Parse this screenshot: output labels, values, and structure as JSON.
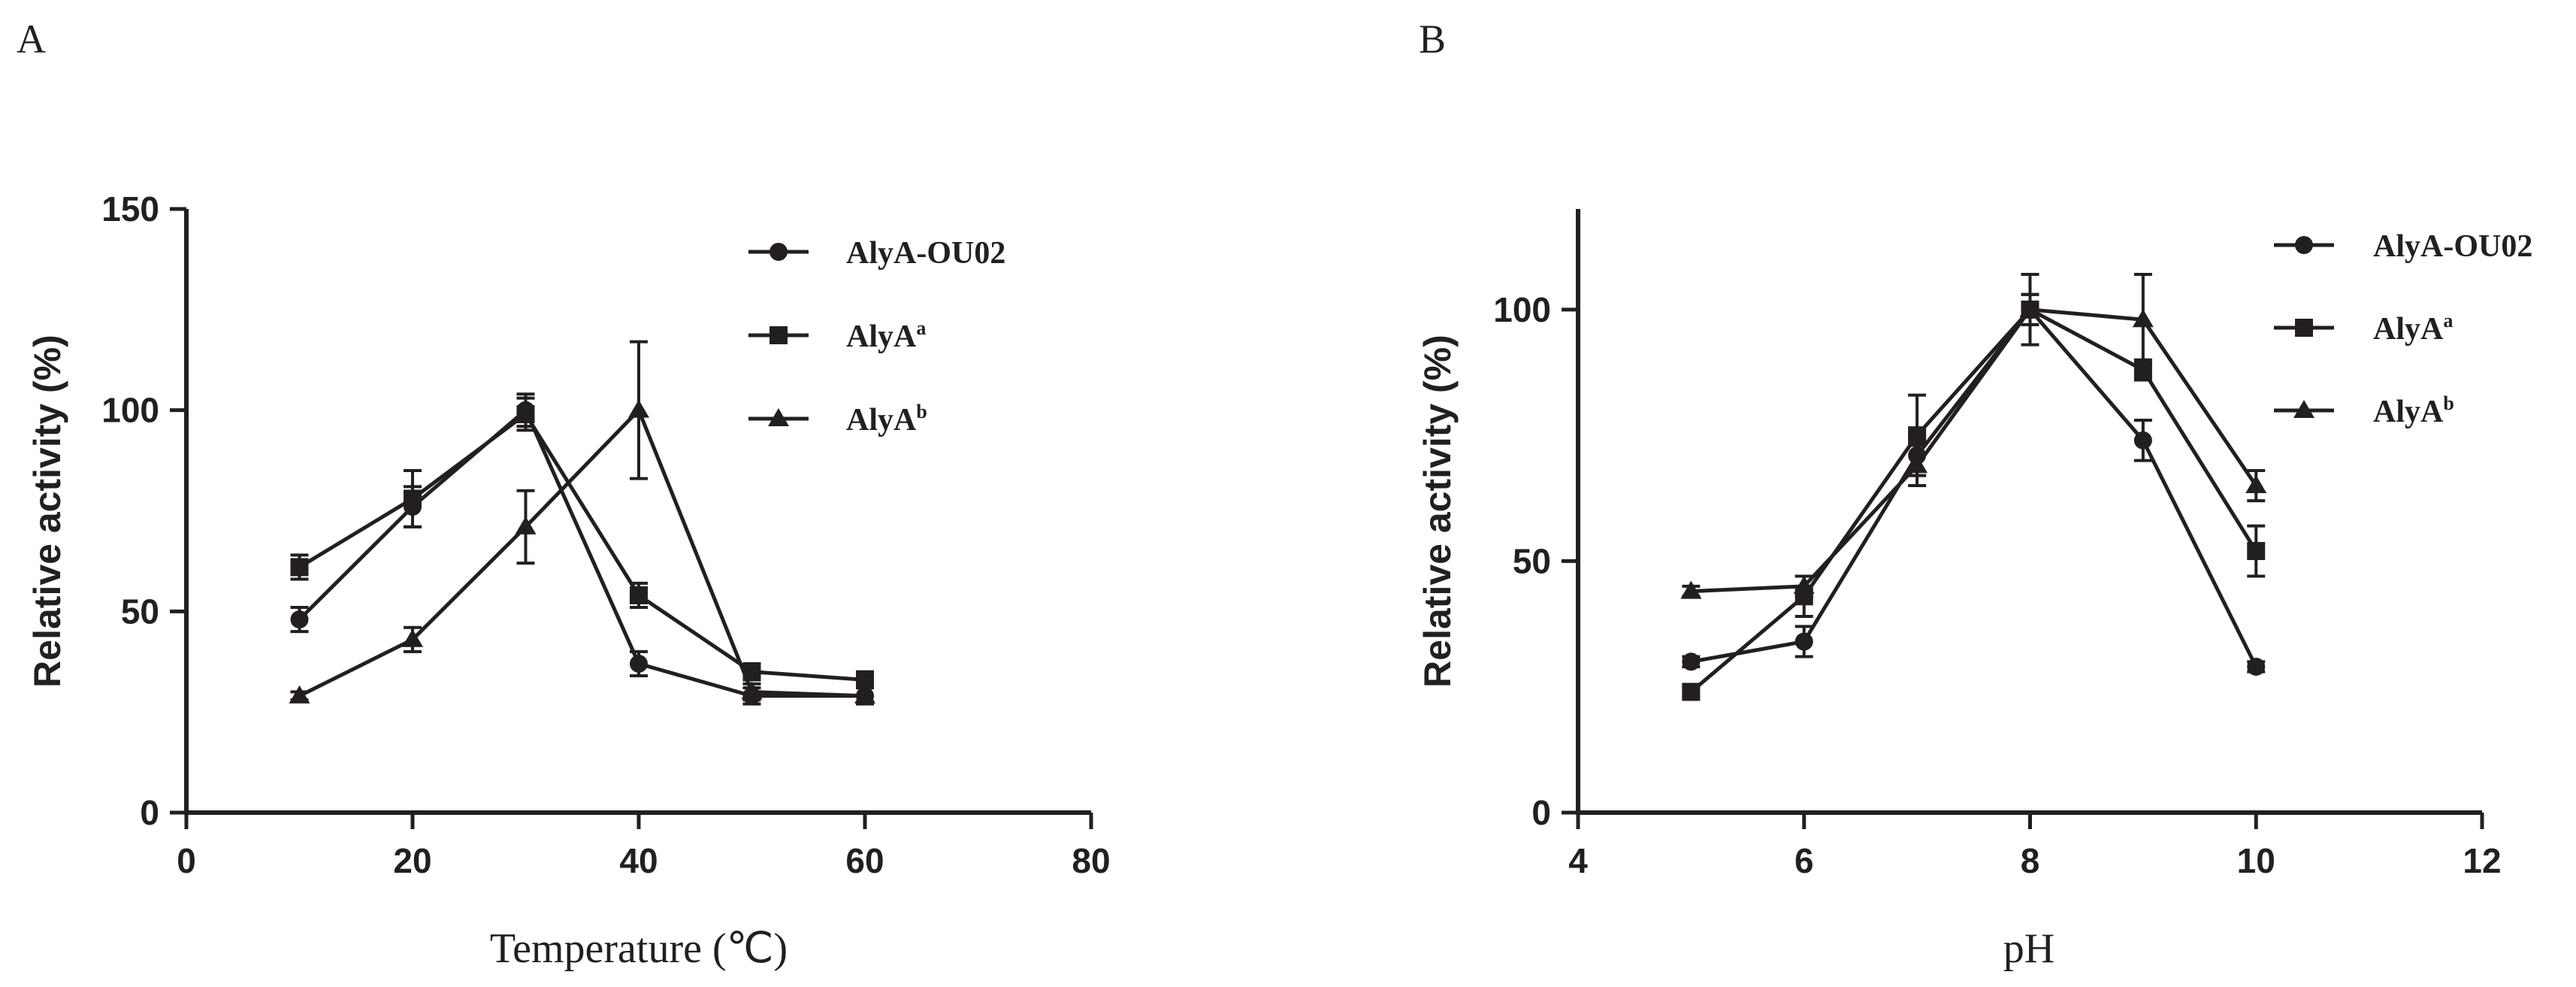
{
  "chart_data": [
    {
      "type": "line",
      "panel_label": "A",
      "xlabel": "Temperature (℃)",
      "ylabel": "Relative activity (%)",
      "xlim": [
        0,
        80
      ],
      "ylim": [
        0,
        150
      ],
      "xticks": [
        0,
        20,
        40,
        60,
        80
      ],
      "yticks": [
        0,
        50,
        100,
        150
      ],
      "grid": false,
      "legend": "top-right",
      "color": "#231f20",
      "series": [
        {
          "name": "AlyA-OU02",
          "name_base": "AlyA-OU02",
          "name_sup": "",
          "marker": "circle",
          "x": [
            10,
            20,
            30,
            40,
            50,
            60
          ],
          "y": [
            48,
            76,
            100,
            37,
            29,
            29
          ],
          "err": [
            3,
            5,
            4,
            3,
            2,
            2
          ]
        },
        {
          "name": "AlyAa",
          "name_base": "AlyA",
          "name_sup": "a",
          "marker": "square",
          "x": [
            10,
            20,
            30,
            40,
            50,
            60
          ],
          "y": [
            61,
            78,
            99,
            54,
            35,
            33
          ],
          "err": [
            3,
            7,
            4,
            3,
            2,
            2
          ]
        },
        {
          "name": "AlyAb",
          "name_base": "AlyA",
          "name_sup": "b",
          "marker": "triangle",
          "x": [
            10,
            20,
            30,
            40,
            50,
            60
          ],
          "y": [
            29,
            43,
            71,
            100,
            30,
            29
          ],
          "err": [
            1,
            3,
            9,
            17,
            2,
            2
          ]
        }
      ]
    },
    {
      "type": "line",
      "panel_label": "B",
      "xlabel": "pH",
      "ylabel": "Relative activity (%)",
      "xlim": [
        4,
        12
      ],
      "ylim": [
        0,
        120
      ],
      "xticks": [
        4,
        6,
        8,
        10,
        12
      ],
      "yticks": [
        0,
        50,
        100
      ],
      "grid": false,
      "legend": "top-right",
      "color": "#231f20",
      "series": [
        {
          "name": "AlyA-OU02",
          "name_base": "AlyA-OU02",
          "name_sup": "",
          "marker": "circle",
          "x": [
            5,
            6,
            7,
            8,
            9,
            10
          ],
          "y": [
            30,
            34,
            71,
            100,
            74,
            29
          ],
          "err": [
            1,
            3,
            4,
            3,
            4,
            1
          ]
        },
        {
          "name": "AlyAa",
          "name_base": "AlyA",
          "name_sup": "a",
          "marker": "square",
          "x": [
            5,
            6,
            7,
            8,
            9,
            10
          ],
          "y": [
            24,
            43,
            75,
            100,
            88,
            52
          ],
          "err": [
            1,
            4,
            8,
            7,
            2,
            5
          ]
        },
        {
          "name": "AlyAb",
          "name_base": "AlyA",
          "name_sup": "b",
          "marker": "triangle",
          "x": [
            5,
            6,
            7,
            8,
            9,
            10
          ],
          "y": [
            44,
            45,
            69,
            100,
            98,
            65
          ],
          "err": [
            1,
            2,
            4,
            3,
            9,
            3
          ]
        }
      ]
    }
  ]
}
